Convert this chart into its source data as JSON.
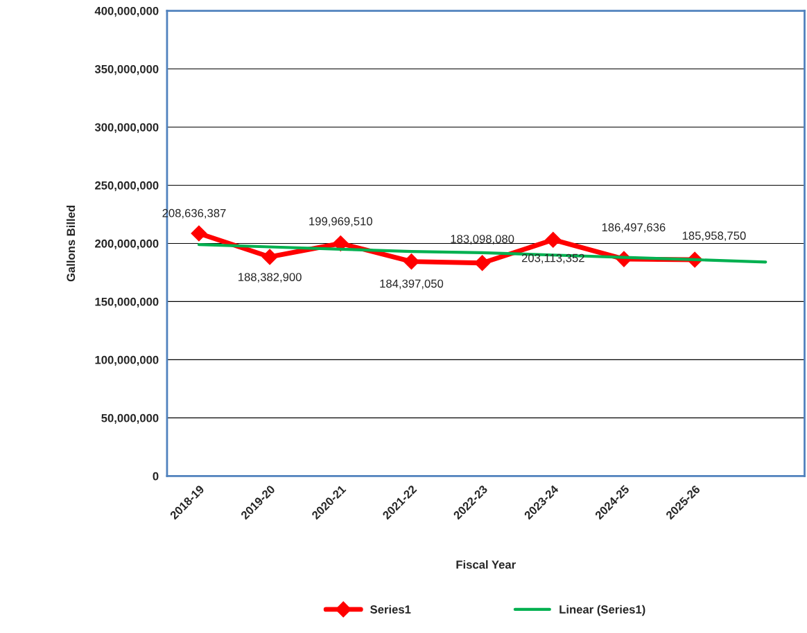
{
  "chart_data": {
    "type": "line",
    "xlabel": "Fiscal Year",
    "ylabel": "Gallons Billed",
    "categories": [
      "2018-19",
      "2019-20",
      "2020-21",
      "2021-22",
      "2022-23",
      "2023-24",
      "2024-25",
      "2025-26",
      null
    ],
    "series": [
      {
        "name": "Series1",
        "color": "#ff0000",
        "marker": "diamond",
        "values": [
          208636387,
          188382900,
          199969510,
          184397050,
          183098080,
          203113352,
          186497636,
          185958750,
          null
        ],
        "value_labels": [
          "208,636,387",
          "188,382,900",
          "199,969,510",
          "184,397,050",
          "183,098,080",
          "203,113,352",
          "186,497,636",
          "185,958,750",
          null
        ]
      },
      {
        "name": "Linear (Series1)",
        "color": "#00b050",
        "marker": "none",
        "values": [
          199000000,
          197000000,
          195000000,
          193000000,
          192000000,
          190000000,
          188000000,
          186000000,
          184000000
        ]
      }
    ],
    "ylim": [
      0,
      400000000
    ],
    "yticks": [
      {
        "value": 0,
        "label": "0"
      },
      {
        "value": 50000000,
        "label": "50,000,000"
      },
      {
        "value": 100000000,
        "label": "100,000,000"
      },
      {
        "value": 150000000,
        "label": "150,000,000"
      },
      {
        "value": 200000000,
        "label": "200,000,000"
      },
      {
        "value": 250000000,
        "label": "250,000,000"
      },
      {
        "value": 300000000,
        "label": "300,000,000"
      },
      {
        "value": 350000000,
        "label": "350,000,000"
      },
      {
        "value": 400000000,
        "label": "400,000,000"
      }
    ],
    "grid": "y",
    "legend": "bottom"
  }
}
